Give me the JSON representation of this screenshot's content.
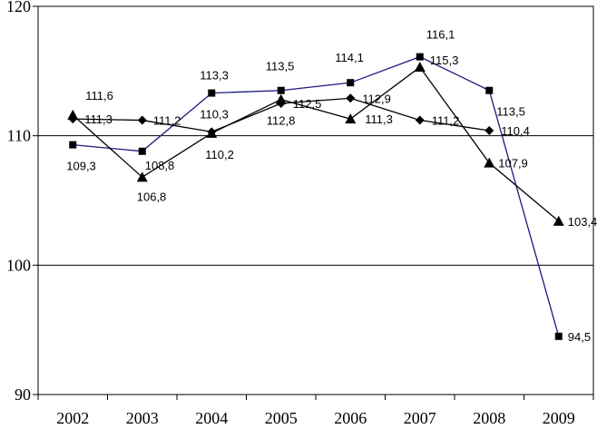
{
  "chart_data": {
    "type": "line",
    "title": "",
    "xlabel": "",
    "ylabel": "",
    "categories": [
      "2002",
      "2003",
      "2004",
      "2005",
      "2006",
      "2007",
      "2008",
      "2009"
    ],
    "ylim": [
      90,
      120
    ],
    "yticks": [
      "90",
      "100",
      "110",
      "120"
    ],
    "gridlines": [
      100,
      110
    ],
    "series": [
      {
        "name": "series-square",
        "marker": "square",
        "color": "#1a1a80",
        "values": [
          109.3,
          108.8,
          113.3,
          113.5,
          114.1,
          116.1,
          113.5,
          94.5
        ],
        "labels": [
          "109,3",
          "108,8",
          "113,3",
          "113,5",
          "114,1",
          "116,1",
          "113,5",
          "94,5"
        ]
      },
      {
        "name": "series-triangle",
        "marker": "triangle",
        "color": "#000000",
        "values": [
          111.6,
          106.8,
          110.2,
          112.8,
          111.3,
          115.3,
          107.9,
          103.4
        ],
        "labels": [
          "111,6",
          "106,8",
          "110,2",
          "112,8",
          "111,3",
          "115,3",
          "107,9",
          "103,4"
        ]
      },
      {
        "name": "series-diamond",
        "marker": "diamond",
        "color": "#000000",
        "values": [
          111.3,
          111.2,
          110.3,
          112.5,
          112.9,
          111.2,
          110.4,
          null
        ],
        "labels": [
          "111,3",
          "111,2",
          "110,3",
          "112,5",
          "112,9",
          "111,2",
          "110,4",
          null
        ]
      }
    ]
  }
}
